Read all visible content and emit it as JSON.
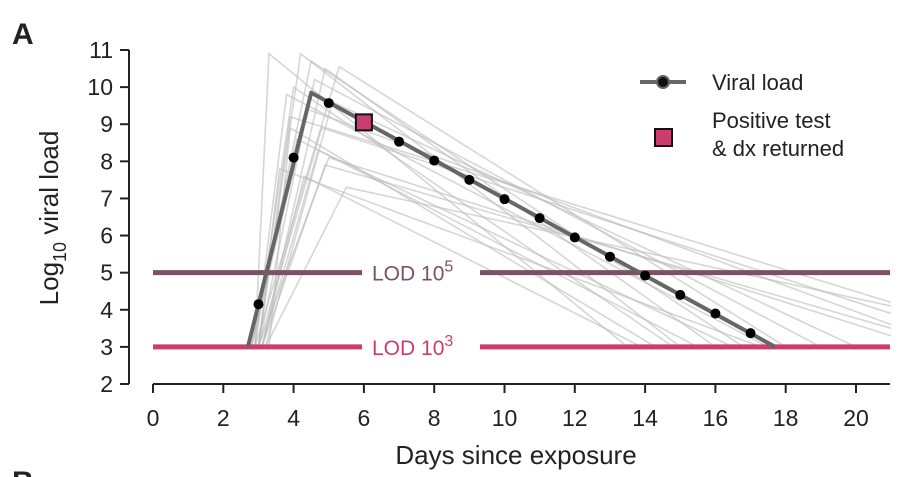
{
  "panel_label": "A",
  "panel_label_next": "B",
  "chart_data": {
    "type": "line",
    "xlabel": "Days since exposure",
    "ylabel": {
      "prefix": "Log",
      "subscript": "10",
      "suffix": " viral load"
    },
    "xlim": [
      0,
      21
    ],
    "ylim": [
      2,
      11
    ],
    "xticks": [
      0,
      2,
      4,
      6,
      8,
      10,
      12,
      14,
      16,
      18,
      20
    ],
    "yticks": [
      2,
      3,
      4,
      5,
      6,
      7,
      8,
      9,
      10,
      11
    ],
    "main_series": {
      "name": "Viral load",
      "color": "#666666",
      "line": [
        [
          2.7,
          3.0
        ],
        [
          4.5,
          9.85
        ],
        [
          17.7,
          3.0
        ]
      ],
      "points": [
        [
          3,
          4.15
        ],
        [
          4,
          8.1
        ],
        [
          5,
          9.57
        ],
        [
          6,
          9.05
        ],
        [
          7,
          8.53
        ],
        [
          8,
          8.02
        ],
        [
          9,
          7.5
        ],
        [
          10,
          6.98
        ],
        [
          11,
          6.47
        ],
        [
          12,
          5.95
        ],
        [
          13,
          5.43
        ],
        [
          14,
          4.92
        ],
        [
          15,
          4.4
        ],
        [
          16,
          3.9
        ],
        [
          17,
          3.37
        ]
      ]
    },
    "positive_test": {
      "name": "Positive test & dx returned",
      "x": 6,
      "y": 9.05,
      "color": "#cc3d6f"
    },
    "background_trajectories": [
      [
        [
          2.9,
          3
        ],
        [
          3.3,
          10.9
        ],
        [
          13.5,
          3
        ]
      ],
      [
        [
          3.0,
          3
        ],
        [
          4.2,
          10.9
        ],
        [
          15,
          3
        ]
      ],
      [
        [
          3.1,
          3
        ],
        [
          4.9,
          10.5
        ],
        [
          16,
          3
        ]
      ],
      [
        [
          2.9,
          3
        ],
        [
          5.3,
          10.55
        ],
        [
          18,
          3
        ]
      ],
      [
        [
          2.8,
          3
        ],
        [
          4.6,
          10.2
        ],
        [
          19,
          3
        ]
      ],
      [
        [
          3.0,
          3
        ],
        [
          3.9,
          9.2
        ],
        [
          21,
          4.2
        ]
      ],
      [
        [
          3.1,
          3
        ],
        [
          4.9,
          7.9
        ],
        [
          21,
          3.5
        ]
      ],
      [
        [
          3.2,
          3
        ],
        [
          5.5,
          7.3
        ],
        [
          21,
          4.1
        ]
      ],
      [
        [
          3.0,
          3
        ],
        [
          3.6,
          7.8
        ],
        [
          17.3,
          3
        ]
      ],
      [
        [
          2.8,
          3
        ],
        [
          4.1,
          8.6
        ],
        [
          15.5,
          3
        ]
      ],
      [
        [
          3.3,
          3
        ],
        [
          3.9,
          8.9
        ],
        [
          14.3,
          3
        ]
      ],
      [
        [
          3.0,
          3
        ],
        [
          4.4,
          9.4
        ],
        [
          21,
          3.6
        ]
      ],
      [
        [
          2.9,
          3
        ],
        [
          4.0,
          10.0
        ],
        [
          14.8,
          3
        ]
      ],
      [
        [
          3.2,
          3
        ],
        [
          5.1,
          9.6
        ],
        [
          20,
          3
        ]
      ],
      [
        [
          3.1,
          3
        ],
        [
          4.7,
          8.3
        ],
        [
          16.5,
          3
        ]
      ],
      [
        [
          3.0,
          3
        ],
        [
          4.8,
          8.9
        ],
        [
          21,
          3.9
        ]
      ],
      [
        [
          2.9,
          3
        ],
        [
          3.8,
          9.8
        ],
        [
          17.5,
          3
        ]
      ],
      [
        [
          3.1,
          3
        ],
        [
          4.3,
          7.6
        ],
        [
          13.9,
          3
        ]
      ],
      [
        [
          3.0,
          3
        ],
        [
          5.0,
          8.1
        ],
        [
          21,
          3.3
        ]
      ],
      [
        [
          2.8,
          3
        ],
        [
          4.5,
          10.7
        ],
        [
          16.8,
          3
        ]
      ]
    ],
    "background_color": "#bbbbbb",
    "thresholds": [
      {
        "y": 5,
        "label": "LOD 10",
        "sup": "5",
        "color": "#7a5268"
      },
      {
        "y": 3,
        "label": "LOD 10",
        "sup": "3",
        "color": "#cc3d6f"
      }
    ],
    "legend": [
      {
        "label": "Viral load",
        "kind": "line-marker"
      },
      {
        "label_line1": "Positive test",
        "label_line2": "& dx returned",
        "kind": "square"
      }
    ],
    "legend_position": "top-right"
  }
}
